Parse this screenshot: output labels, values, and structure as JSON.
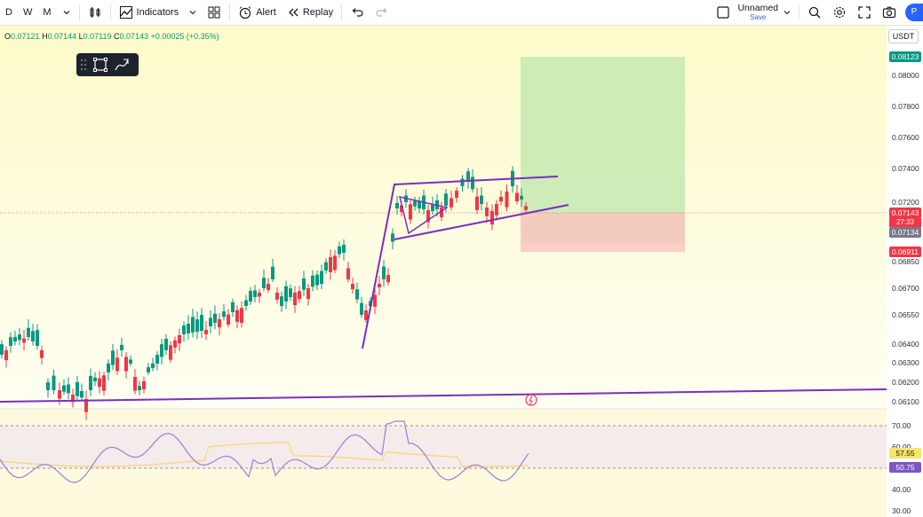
{
  "toolbar": {
    "timeframes": [
      "D",
      "W",
      "M"
    ],
    "indicators_label": "Indicators",
    "alert_label": "Alert",
    "replay_label": "Replay",
    "layout_name": "Unnamed",
    "layout_status": "Save",
    "avatar_letter": "P"
  },
  "legend": {
    "open": "0.07121",
    "high": "0.07144",
    "low": "0.07119",
    "close": "0.07143",
    "change": "+0.00025 (+0.35%)"
  },
  "currency": "USDT",
  "price_scale": {
    "ticks": [
      "0.08000",
      "0.07800",
      "0.07600",
      "0.07400",
      "0.07200",
      "0.06850",
      "0.06700",
      "0.06550",
      "0.06400",
      "0.06300",
      "0.06200",
      "0.06100"
    ],
    "target_label": "0.08123",
    "last_price_label": "0.07143",
    "countdown_label": "27:33",
    "entry_label": "0.07134",
    "stop_label": "0.06911"
  },
  "rsi_scale": {
    "ticks": [
      "70.00",
      "60.00",
      "40.00",
      "30.00"
    ],
    "ma_label": "57.55",
    "rsi_label": "50.75"
  },
  "colors": {
    "up": "#089981",
    "down": "#f23645",
    "trendline": "#7b2fbf",
    "target_zone": "#c6e9b0",
    "stop_zone": "#f9c7bf",
    "rsi_line": "#9d7ed6",
    "rsi_ma": "#f5d86a"
  }
}
